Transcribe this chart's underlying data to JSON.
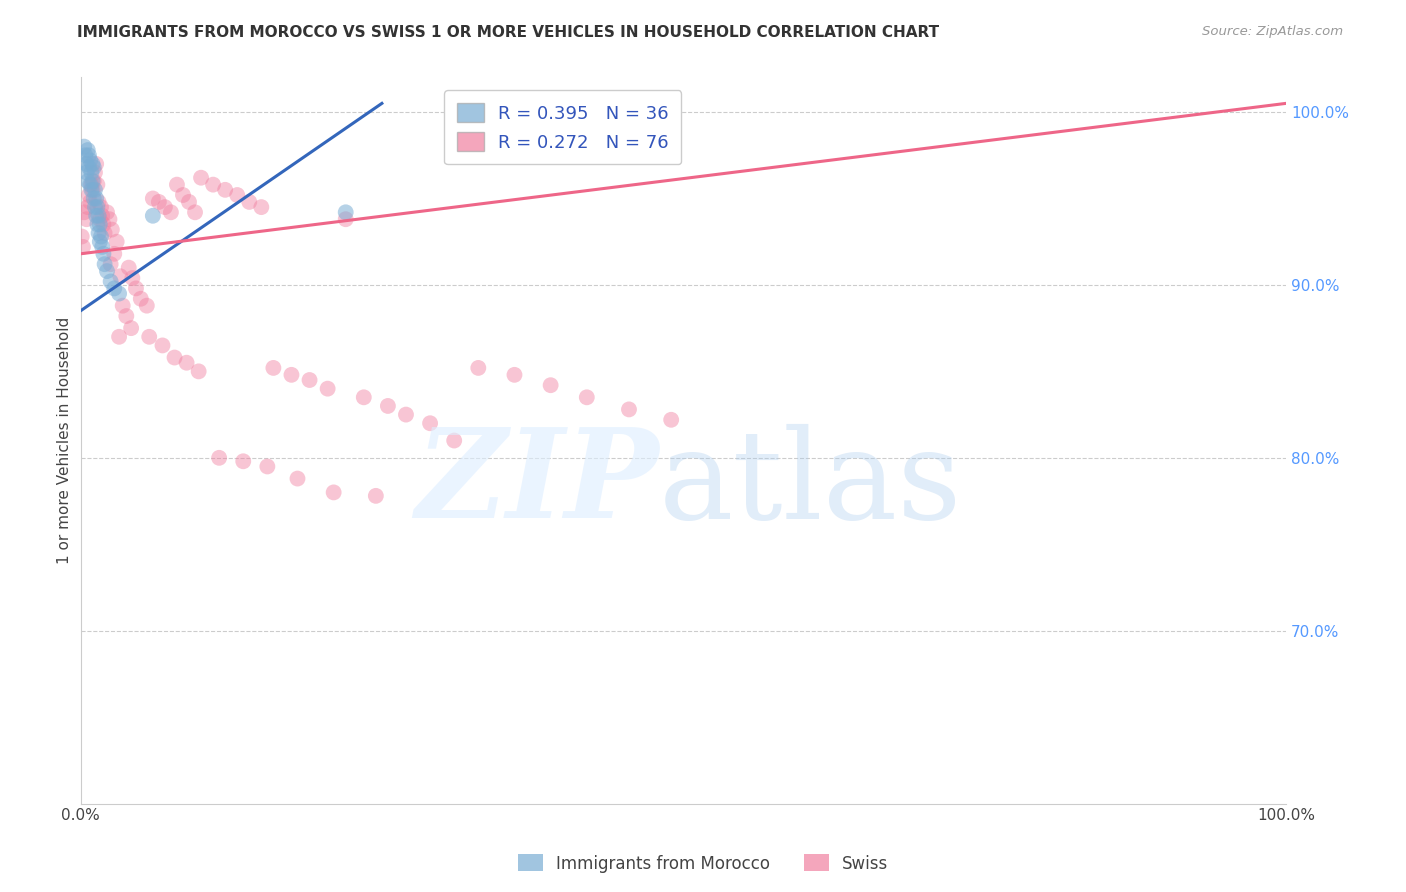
{
  "title": "IMMIGRANTS FROM MOROCCO VS SWISS 1 OR MORE VEHICLES IN HOUSEHOLD CORRELATION CHART",
  "source": "Source: ZipAtlas.com",
  "ylabel": "1 or more Vehicles in Household",
  "xlim": [
    0.0,
    1.0
  ],
  "ylim": [
    0.6,
    1.02
  ],
  "grid_color": "#cccccc",
  "background_color": "#ffffff",
  "legend_r_blue": "R = 0.395",
  "legend_n_blue": "N = 36",
  "legend_r_pink": "R = 0.272",
  "legend_n_pink": "N = 76",
  "blue_color": "#7aadd4",
  "pink_color": "#f080a0",
  "blue_line_color": "#3366bb",
  "pink_line_color": "#ee6688",
  "title_color": "#333333",
  "source_color": "#999999",
  "right_axis_color": "#5599ff",
  "blue_line_x0": 0.0,
  "blue_line_y0": 0.885,
  "blue_line_x1": 0.25,
  "blue_line_y1": 1.005,
  "pink_line_x0": 0.0,
  "pink_line_y0": 0.918,
  "pink_line_x1": 1.0,
  "pink_line_y1": 1.005,
  "blue_points_x": [
    0.003,
    0.004,
    0.005,
    0.005,
    0.006,
    0.006,
    0.007,
    0.007,
    0.008,
    0.008,
    0.009,
    0.009,
    0.01,
    0.01,
    0.011,
    0.011,
    0.012,
    0.012,
    0.013,
    0.013,
    0.014,
    0.014,
    0.015,
    0.015,
    0.016,
    0.016,
    0.017,
    0.018,
    0.019,
    0.02,
    0.022,
    0.025,
    0.028,
    0.032,
    0.06,
    0.22
  ],
  "blue_points_y": [
    0.98,
    0.975,
    0.97,
    0.965,
    0.978,
    0.96,
    0.975,
    0.968,
    0.972,
    0.958,
    0.965,
    0.955,
    0.97,
    0.96,
    0.968,
    0.95,
    0.955,
    0.945,
    0.95,
    0.94,
    0.945,
    0.935,
    0.94,
    0.93,
    0.935,
    0.925,
    0.928,
    0.922,
    0.918,
    0.912,
    0.908,
    0.902,
    0.898,
    0.895,
    0.94,
    0.942
  ],
  "pink_points_x": [
    0.003,
    0.005,
    0.006,
    0.007,
    0.008,
    0.009,
    0.01,
    0.011,
    0.012,
    0.013,
    0.014,
    0.015,
    0.016,
    0.017,
    0.018,
    0.019,
    0.02,
    0.022,
    0.024,
    0.026,
    0.028,
    0.03,
    0.032,
    0.035,
    0.038,
    0.04,
    0.043,
    0.046,
    0.05,
    0.055,
    0.06,
    0.065,
    0.07,
    0.075,
    0.08,
    0.085,
    0.09,
    0.095,
    0.1,
    0.11,
    0.12,
    0.13,
    0.14,
    0.15,
    0.16,
    0.175,
    0.19,
    0.205,
    0.22,
    0.235,
    0.255,
    0.27,
    0.29,
    0.31,
    0.33,
    0.36,
    0.39,
    0.42,
    0.455,
    0.49,
    0.001,
    0.002,
    0.025,
    0.033,
    0.042,
    0.057,
    0.068,
    0.078,
    0.088,
    0.098,
    0.115,
    0.135,
    0.155,
    0.18,
    0.21,
    0.245
  ],
  "pink_points_y": [
    0.942,
    0.938,
    0.945,
    0.952,
    0.948,
    0.958,
    0.955,
    0.96,
    0.965,
    0.97,
    0.958,
    0.948,
    0.938,
    0.945,
    0.94,
    0.935,
    0.93,
    0.942,
    0.938,
    0.932,
    0.918,
    0.925,
    0.87,
    0.888,
    0.882,
    0.91,
    0.904,
    0.898,
    0.892,
    0.888,
    0.95,
    0.948,
    0.945,
    0.942,
    0.958,
    0.952,
    0.948,
    0.942,
    0.962,
    0.958,
    0.955,
    0.952,
    0.948,
    0.945,
    0.852,
    0.848,
    0.845,
    0.84,
    0.938,
    0.835,
    0.83,
    0.825,
    0.82,
    0.81,
    0.852,
    0.848,
    0.842,
    0.835,
    0.828,
    0.822,
    0.928,
    0.922,
    0.912,
    0.905,
    0.875,
    0.87,
    0.865,
    0.858,
    0.855,
    0.85,
    0.8,
    0.798,
    0.795,
    0.788,
    0.78,
    0.778
  ]
}
